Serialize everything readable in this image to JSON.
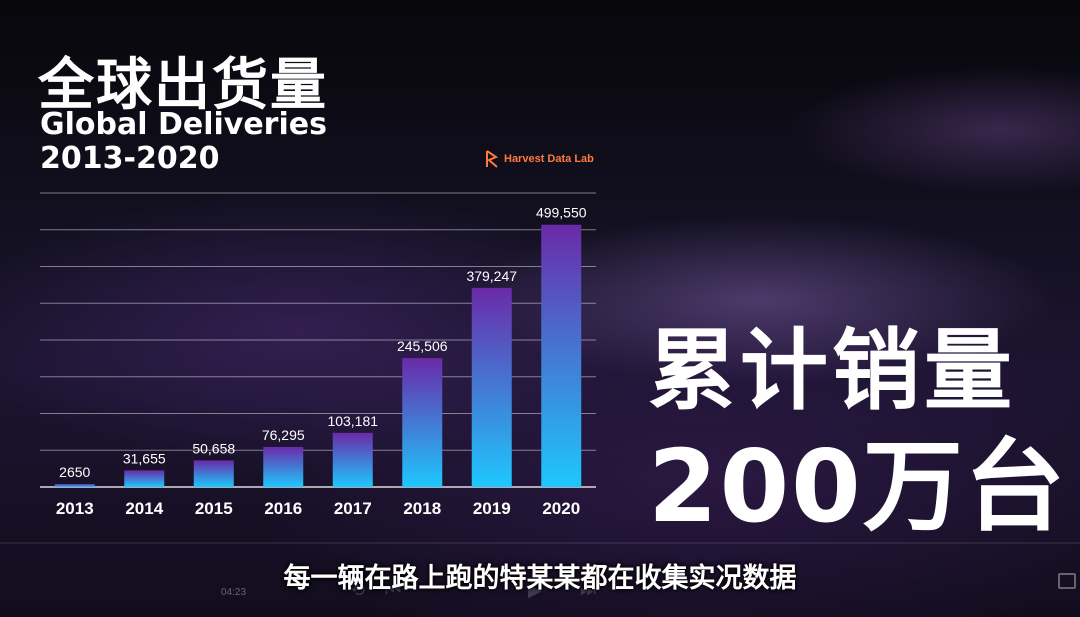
{
  "title_cn": "全球出货量",
  "title_en_line1": "Global Deliveries",
  "title_en_line2": "2013-2020",
  "brand": "Harvest Data Lab",
  "headline_line1": "累计销量",
  "headline_line2": "200万台",
  "subtitle": "每一辆在路上跑的特某某都在收集实况数据",
  "player": {
    "time": "04:23"
  },
  "colors": {
    "bar_top": "#6a2aa8",
    "bar_bottom": "#1ec8ff",
    "brand": "#ff7a3a"
  },
  "chart_data": {
    "type": "bar",
    "categories": [
      "2013",
      "2014",
      "2015",
      "2016",
      "2017",
      "2018",
      "2019",
      "2020"
    ],
    "values": [
      2650,
      31655,
      50658,
      76295,
      103181,
      245506,
      379247,
      499550
    ],
    "value_labels": [
      "2650",
      "31,655",
      "50,658",
      "76,295",
      "103,181",
      "245,506",
      "379,247",
      "499,550"
    ],
    "ylim": [
      0,
      560000
    ],
    "grid": true,
    "y_axis_labels": false
  }
}
